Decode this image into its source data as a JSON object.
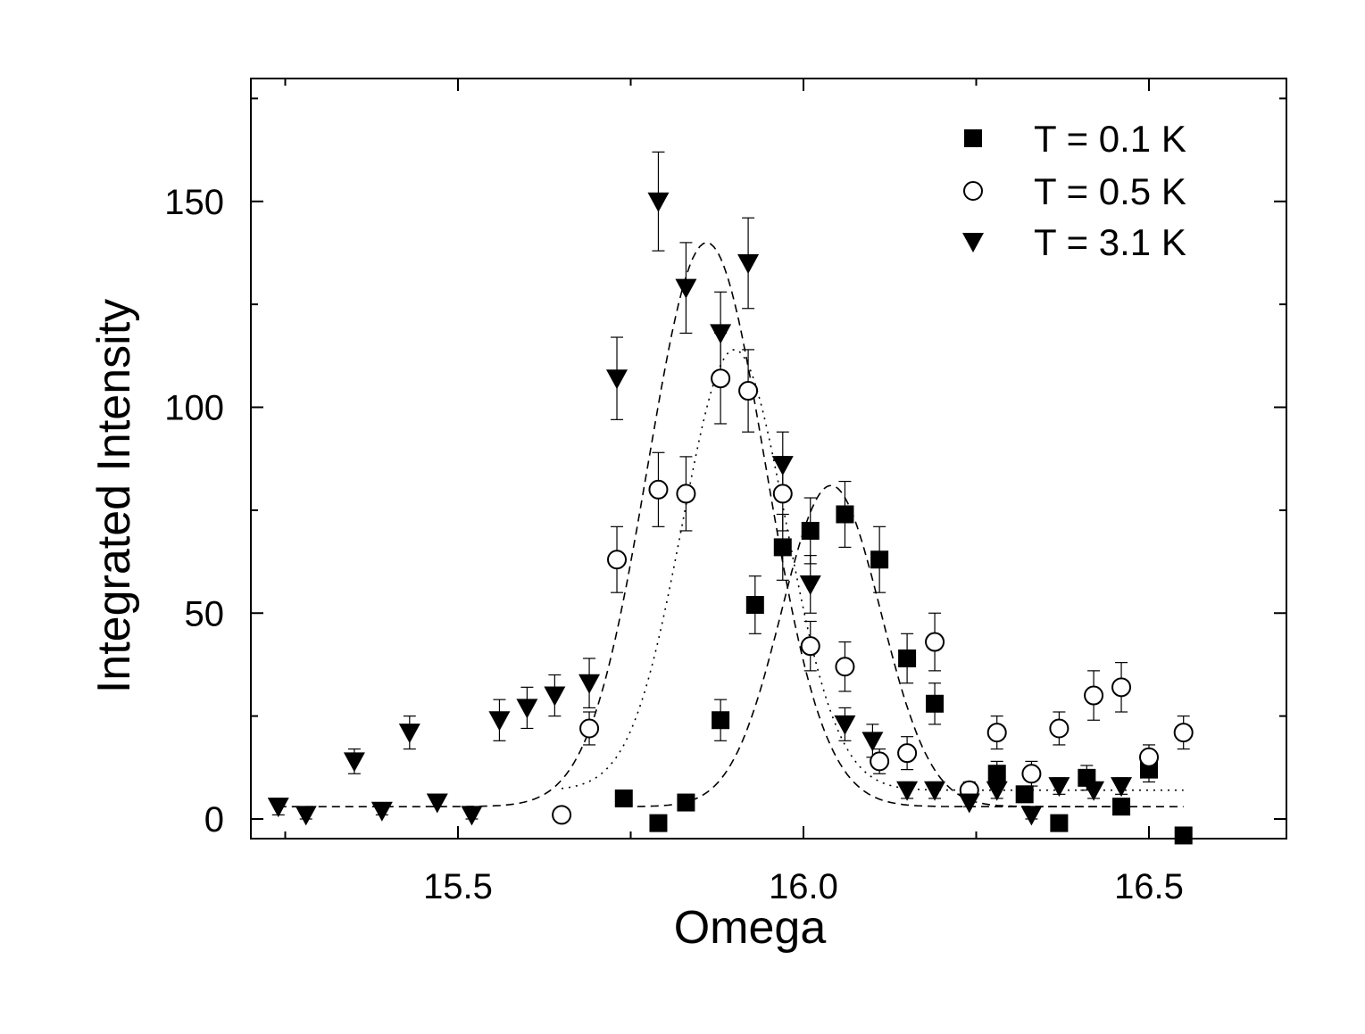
{
  "chart_data": {
    "type": "scatter",
    "title": "",
    "xlabel": "Omega",
    "ylabel": "Integrated Intensity",
    "xlim": [
      15.2,
      16.7
    ],
    "ylim": [
      -5,
      180
    ],
    "xticks": [
      15.5,
      16.0,
      16.5
    ],
    "xtick_labels": [
      "15.5",
      "16.0",
      "16.5"
    ],
    "yticks": [
      0,
      50,
      100,
      150
    ],
    "ytick_labels": [
      "0",
      "50",
      "100",
      "150"
    ],
    "legend_position": "top-right",
    "series": [
      {
        "name": "T = 0.1 K",
        "marker": "filled-square",
        "x": [
          15.74,
          15.79,
          15.83,
          15.88,
          15.93,
          15.97,
          16.01,
          16.06,
          16.11,
          16.15,
          16.19,
          16.28,
          16.32,
          16.37,
          16.41,
          16.46,
          16.5,
          16.55
        ],
        "y": [
          5,
          -1,
          4,
          24,
          52,
          66,
          70,
          74,
          63,
          39,
          28,
          11,
          6,
          -1,
          10,
          3,
          12,
          -4
        ],
        "err": [
          2,
          0,
          0,
          5,
          7,
          8,
          8,
          8,
          8,
          6,
          5,
          3,
          2,
          0,
          3,
          0,
          3,
          0
        ],
        "fit_style": "dashed",
        "fit": {
          "amplitude": 78,
          "center": 16.04,
          "sigma": 0.072,
          "baseline": 3
        }
      },
      {
        "name": "T = 0.5 K",
        "marker": "open-circle",
        "x": [
          15.65,
          15.69,
          15.73,
          15.79,
          15.83,
          15.88,
          15.92,
          15.97,
          16.01,
          16.06,
          16.11,
          16.15,
          16.19,
          16.24,
          16.28,
          16.33,
          16.37,
          16.42,
          16.46,
          16.5,
          16.55
        ],
        "y": [
          1,
          22,
          63,
          80,
          79,
          107,
          104,
          79,
          42,
          37,
          14,
          16,
          43,
          7,
          21,
          11,
          22,
          30,
          32,
          15,
          21
        ],
        "err": [
          1,
          4,
          8,
          9,
          9,
          11,
          10,
          9,
          6,
          6,
          3,
          4,
          7,
          2,
          4,
          3,
          4,
          6,
          6,
          3,
          4
        ],
        "fit_style": "dotted",
        "fit": {
          "amplitude": 107,
          "center": 15.9,
          "sigma": 0.075,
          "baseline": 7
        }
      },
      {
        "name": "T = 3.1 K",
        "marker": "filled-triangle-down",
        "x": [
          15.24,
          15.28,
          15.35,
          15.39,
          15.43,
          15.47,
          15.52,
          15.56,
          15.6,
          15.64,
          15.69,
          15.73,
          15.79,
          15.83,
          15.88,
          15.92,
          15.97,
          16.01,
          16.06,
          16.1,
          16.15,
          16.19,
          16.24,
          16.28,
          16.33,
          16.37,
          16.42,
          16.46
        ],
        "y": [
          3,
          1,
          14,
          2,
          21,
          4,
          1,
          24,
          27,
          30,
          33,
          107,
          150,
          129,
          118,
          135,
          86,
          57,
          23,
          19,
          7,
          7,
          4,
          7,
          1,
          8,
          7,
          8
        ],
        "err": [
          2,
          1,
          3,
          1,
          4,
          1,
          1,
          5,
          5,
          5,
          6,
          10,
          12,
          11,
          10,
          11,
          8,
          7,
          4,
          4,
          2,
          2,
          1,
          2,
          1,
          2,
          2,
          2
        ],
        "fit_style": "dashed",
        "fit": {
          "amplitude": 137,
          "center": 15.86,
          "sigma": 0.085,
          "baseline": 3
        }
      }
    ]
  }
}
